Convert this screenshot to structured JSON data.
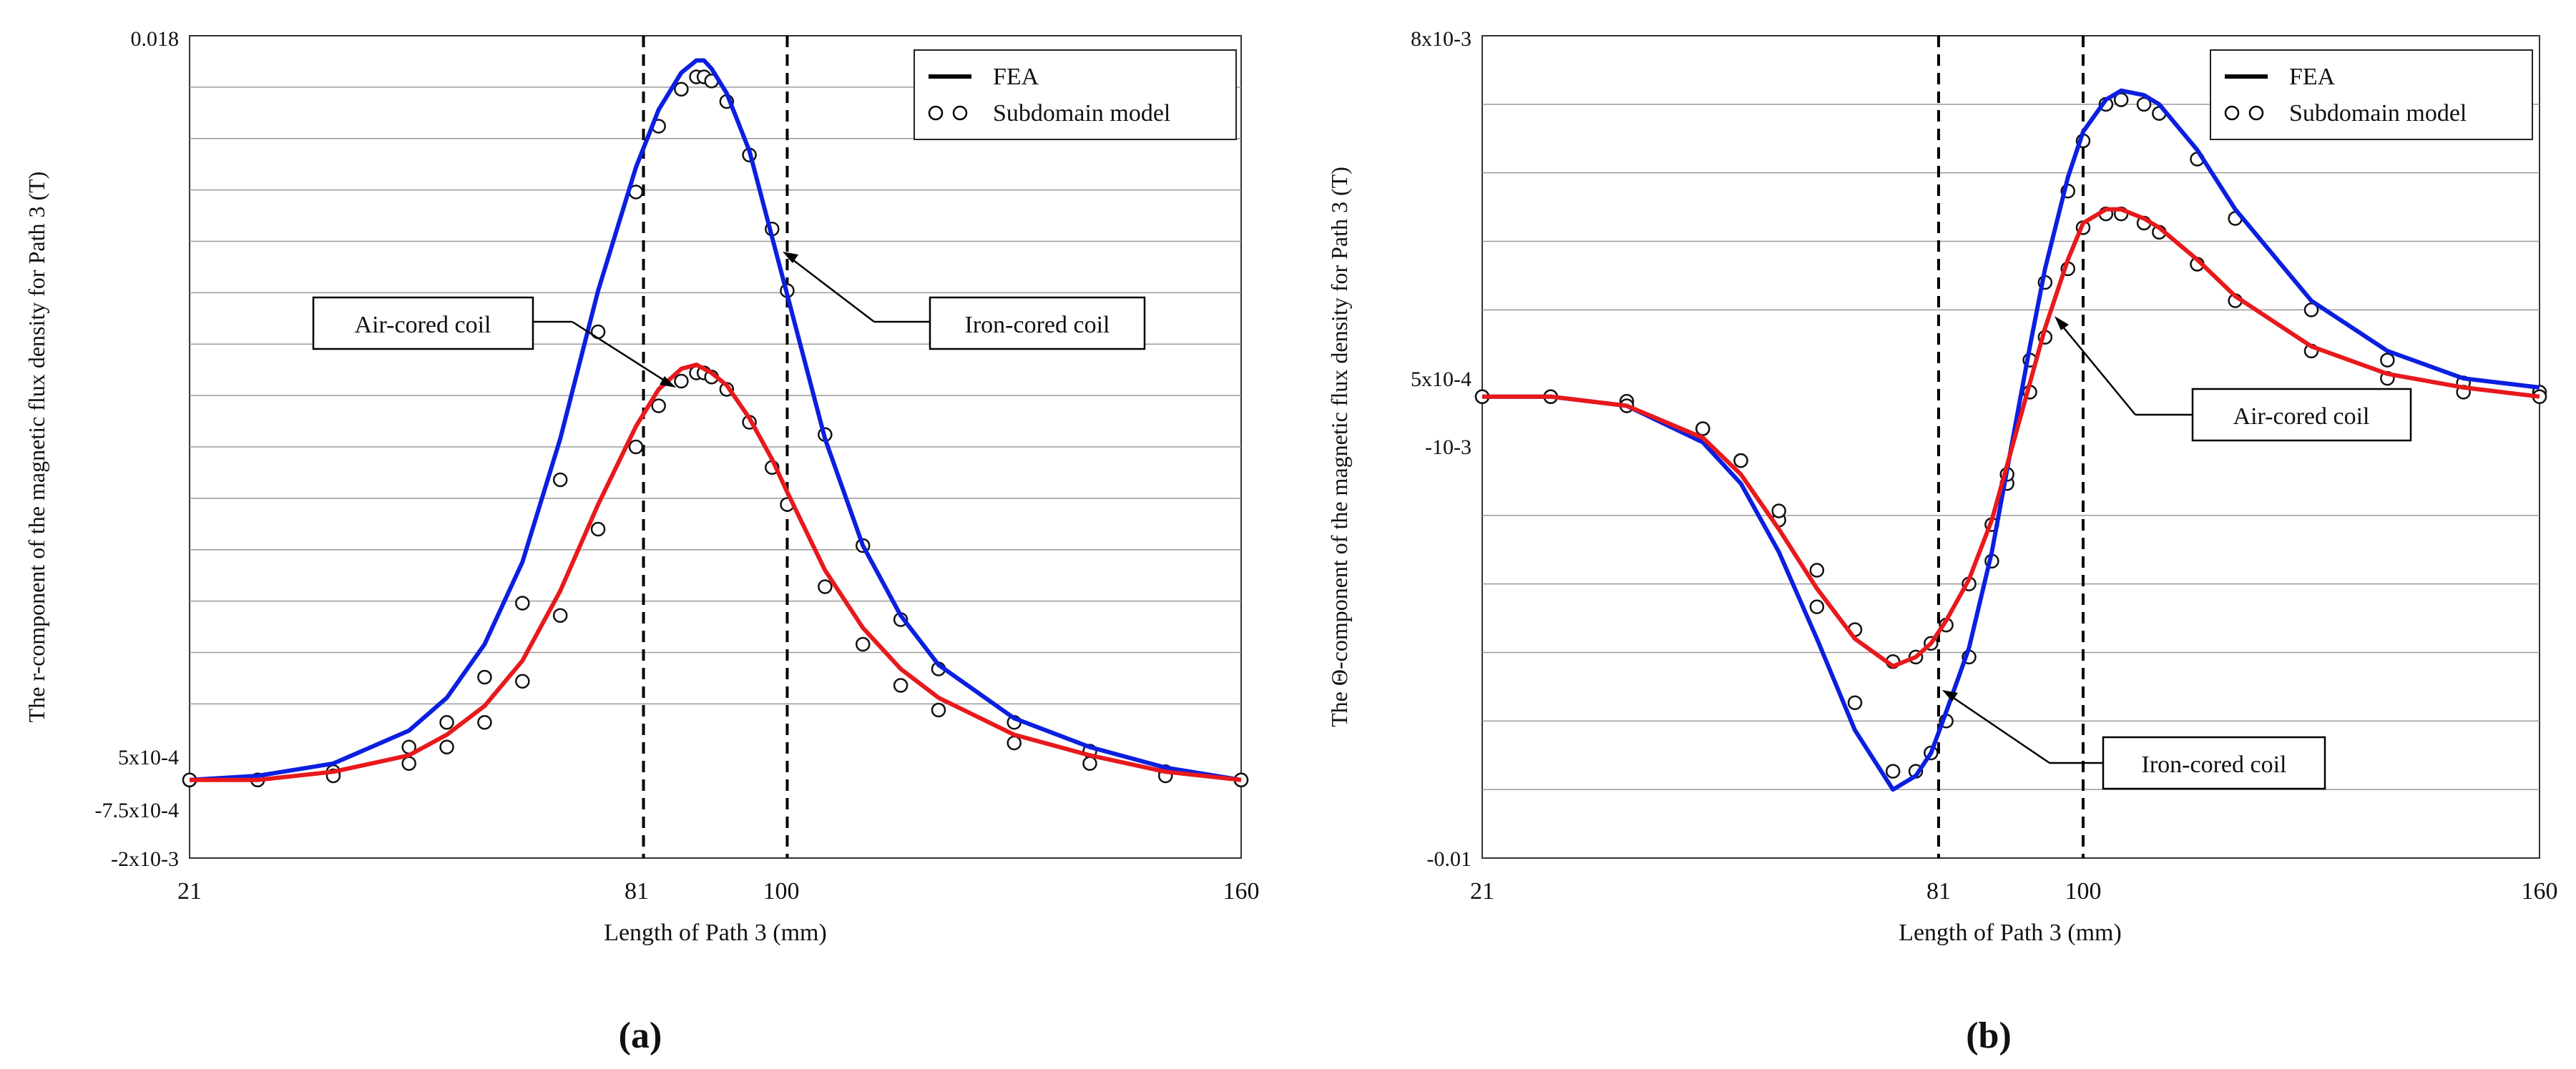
{
  "chart_data": [
    {
      "type": "line",
      "panel_label": "(a)",
      "xlabel": "Length of Path 3 (mm)",
      "ylabel": "The r-component of the magnetic flux density for Path 3 (T)",
      "xlim": [
        21,
        160
      ],
      "x_tick_labels": [
        {
          "value": 21,
          "label": "21"
        },
        {
          "value": 81,
          "label": "81"
        },
        {
          "value": 100,
          "label": "100"
        },
        {
          "value": 160,
          "label": "160"
        }
      ],
      "ylim": [
        -0.002,
        0.018
      ],
      "y_tick_labels": [
        {
          "value": 0.018,
          "label": "0.018"
        },
        {
          "value": 0.0005,
          "label": "5x10-4"
        },
        {
          "value": -0.00075,
          "label": "-7.5x10-4"
        },
        {
          "value": -0.002,
          "label": "-2x10-3"
        }
      ],
      "gridlines_y": [
        0.01675,
        0.0155,
        0.01425,
        0.013,
        0.01175,
        0.0105,
        0.00925,
        0.008,
        0.00675,
        0.0055,
        0.00425,
        0.003,
        0.00175
      ],
      "vlines": [
        81,
        100
      ],
      "legend": {
        "position": "top-right",
        "entries": [
          {
            "kind": "line",
            "label": "FEA"
          },
          {
            "kind": "markers",
            "label": "Subdomain model"
          }
        ]
      },
      "annotations": [
        {
          "label": "Air-cored coil",
          "target_series": "air",
          "target_x": 88
        },
        {
          "label": "Iron-cored coil",
          "target_series": "iron",
          "target_x": 100
        }
      ],
      "series": [
        {
          "id": "iron",
          "name": "Iron-cored coil (FEA)",
          "color": "#0b1fe0",
          "x": [
            21,
            30,
            40,
            50,
            55,
            60,
            65,
            70,
            75,
            80,
            83,
            86,
            88,
            89,
            90,
            92,
            95,
            98,
            100,
            105,
            110,
            115,
            120,
            130,
            140,
            150,
            160
          ],
          "y": [
            -0.0001,
            0.0,
            0.0003,
            0.0011,
            0.0019,
            0.0032,
            0.0052,
            0.0082,
            0.0118,
            0.0148,
            0.0162,
            0.0171,
            0.0174,
            0.0174,
            0.0172,
            0.0166,
            0.0152,
            0.0131,
            0.0117,
            0.0082,
            0.0056,
            0.0039,
            0.0027,
            0.0014,
            0.0007,
            0.0002,
            -0.0001
          ]
        },
        {
          "id": "air",
          "name": "Air-cored coil (FEA)",
          "color": "#e8191c",
          "x": [
            21,
            30,
            40,
            50,
            55,
            60,
            65,
            70,
            75,
            80,
            83,
            86,
            88,
            89,
            90,
            92,
            95,
            98,
            100,
            105,
            110,
            115,
            120,
            130,
            140,
            150,
            160
          ],
          "y": [
            -0.0001,
            -0.0001,
            0.0001,
            0.0005,
            0.001,
            0.0017,
            0.0028,
            0.0045,
            0.0066,
            0.0085,
            0.0094,
            0.0099,
            0.01,
            0.0099,
            0.0098,
            0.0095,
            0.0087,
            0.0077,
            0.0069,
            0.005,
            0.0036,
            0.0026,
            0.0019,
            0.001,
            0.0005,
            0.0001,
            -0.0001
          ]
        },
        {
          "id": "iron_sub",
          "name": "Iron-cored coil (Subdomain model)",
          "markers": "circle",
          "x": [
            21,
            30,
            40,
            50,
            55,
            60,
            65,
            70,
            75,
            80,
            83,
            86,
            88,
            89,
            90,
            92,
            95,
            98,
            100,
            105,
            110,
            115,
            120,
            130,
            140,
            150,
            160
          ],
          "y": [
            -0.0001,
            -0.0001,
            0.0001,
            0.0007,
            0.0013,
            0.0024,
            0.0042,
            0.0072,
            0.0108,
            0.0142,
            0.0158,
            0.0167,
            0.017,
            0.017,
            0.0169,
            0.0164,
            0.0151,
            0.0133,
            0.0118,
            0.0083,
            0.0056,
            0.0038,
            0.0026,
            0.0013,
            0.0006,
            0.0001,
            -0.0001
          ]
        },
        {
          "id": "air_sub",
          "name": "Air-cored coil (Subdomain model)",
          "markers": "circle",
          "x": [
            21,
            30,
            40,
            50,
            55,
            60,
            65,
            70,
            75,
            80,
            83,
            86,
            88,
            89,
            90,
            92,
            95,
            98,
            100,
            105,
            110,
            115,
            120,
            130,
            140,
            150,
            160
          ],
          "y": [
            -0.0001,
            -0.0001,
            0.0,
            0.0003,
            0.0007,
            0.0013,
            0.0023,
            0.0039,
            0.006,
            0.008,
            0.009,
            0.0096,
            0.0098,
            0.0098,
            0.0097,
            0.0094,
            0.0086,
            0.0075,
            0.0066,
            0.0046,
            0.0032,
            0.0022,
            0.0016,
            0.0008,
            0.0003,
            0.0,
            -0.0001
          ]
        }
      ]
    },
    {
      "type": "line",
      "panel_label": "(b)",
      "xlabel": "Length of Path 3 (mm)",
      "ylabel": "The Θ-component of the magnetic flux density for Path 3 (T)",
      "xlim": [
        21,
        160
      ],
      "x_tick_labels": [
        {
          "value": 21,
          "label": "21"
        },
        {
          "value": 81,
          "label": "81"
        },
        {
          "value": 100,
          "label": "100"
        },
        {
          "value": 160,
          "label": "160"
        }
      ],
      "ylim": [
        -0.01,
        0.008
      ],
      "y_tick_labels": [
        {
          "value": 0.008,
          "label": "8x10-3"
        },
        {
          "value": 0.0005,
          "label": "5x10-4"
        },
        {
          "value": -0.001,
          "label": "-10-3"
        },
        {
          "value": -0.01,
          "label": "-0.01"
        }
      ],
      "gridlines_y": [
        0.0065,
        0.005,
        0.0035,
        0.002,
        -0.0025,
        -0.004,
        -0.0055,
        -0.007,
        -0.0085
      ],
      "vlines": [
        81,
        100
      ],
      "legend": {
        "position": "top-right",
        "entries": [
          {
            "kind": "line",
            "label": "FEA"
          },
          {
            "kind": "markers",
            "label": "Subdomain model"
          }
        ]
      },
      "annotations": [
        {
          "label": "Air-cored coil",
          "target_series": "air",
          "target_x": 95
        },
        {
          "label": "Iron-cored coil",
          "target_series": "iron",
          "target_x": 81
        }
      ],
      "series": [
        {
          "id": "iron",
          "name": "Iron-cored coil (FEA)",
          "color": "#0b1fe0",
          "x": [
            21,
            30,
            40,
            50,
            55,
            60,
            65,
            70,
            75,
            78,
            80,
            82,
            85,
            88,
            90,
            93,
            95,
            98,
            100,
            103,
            105,
            108,
            110,
            115,
            120,
            130,
            140,
            150,
            160
          ],
          "y": [
            0.0001,
            0.0001,
            -0.0001,
            -0.0009,
            -0.0018,
            -0.0033,
            -0.0052,
            -0.0072,
            -0.0085,
            -0.0082,
            -0.0077,
            -0.0068,
            -0.0054,
            -0.0033,
            -0.0015,
            0.0012,
            0.0029,
            0.0049,
            0.0059,
            0.0066,
            0.0068,
            0.0067,
            0.0065,
            0.0055,
            0.0042,
            0.0022,
            0.0011,
            0.0005,
            0.0003
          ]
        },
        {
          "id": "air",
          "name": "Air-cored coil (FEA)",
          "color": "#e8191c",
          "x": [
            21,
            30,
            40,
            50,
            55,
            60,
            65,
            70,
            75,
            78,
            80,
            82,
            85,
            88,
            90,
            93,
            95,
            98,
            100,
            103,
            105,
            108,
            110,
            115,
            120,
            130,
            140,
            150,
            160
          ],
          "y": [
            0.0001,
            0.0001,
            -0.0001,
            -0.0008,
            -0.0016,
            -0.0028,
            -0.0041,
            -0.0052,
            -0.0058,
            -0.0056,
            -0.0053,
            -0.0048,
            -0.0039,
            -0.0026,
            -0.0014,
            0.0004,
            0.0016,
            0.0031,
            0.0039,
            0.0042,
            0.0042,
            0.004,
            0.0038,
            0.0031,
            0.0023,
            0.0012,
            0.0006,
            0.0003,
            0.0001
          ]
        },
        {
          "id": "iron_sub",
          "name": "Iron-cored coil (Subdomain model)",
          "markers": "circle",
          "x": [
            21,
            30,
            40,
            50,
            55,
            60,
            65,
            70,
            75,
            78,
            80,
            82,
            85,
            88,
            90,
            93,
            95,
            98,
            100,
            103,
            105,
            108,
            110,
            115,
            120,
            130,
            140,
            150,
            160
          ],
          "y": [
            0.0001,
            0.0001,
            0.0,
            -0.0006,
            -0.0013,
            -0.0026,
            -0.0045,
            -0.0066,
            -0.0081,
            -0.0081,
            -0.0077,
            -0.007,
            -0.0056,
            -0.0035,
            -0.0018,
            0.0009,
            0.0026,
            0.0046,
            0.0057,
            0.0065,
            0.0066,
            0.0065,
            0.0063,
            0.0053,
            0.004,
            0.002,
            0.0009,
            0.0004,
            0.0002
          ]
        },
        {
          "id": "air_sub",
          "name": "Air-cored coil (Subdomain model)",
          "markers": "circle",
          "x": [
            21,
            30,
            40,
            50,
            55,
            60,
            65,
            70,
            75,
            78,
            80,
            82,
            85,
            88,
            90,
            93,
            95,
            98,
            100,
            103,
            105,
            108,
            110,
            115,
            120,
            130,
            140,
            150,
            160
          ],
          "y": [
            0.0001,
            0.0001,
            -0.0001,
            -0.0006,
            -0.0013,
            -0.0024,
            -0.0037,
            -0.005,
            -0.0057,
            -0.0056,
            -0.0053,
            -0.0049,
            -0.004,
            -0.0027,
            -0.0016,
            0.0002,
            0.0014,
            0.0029,
            0.0038,
            0.0041,
            0.0041,
            0.0039,
            0.0037,
            0.003,
            0.0022,
            0.0011,
            0.0005,
            0.0002,
            0.0001
          ]
        }
      ]
    }
  ]
}
